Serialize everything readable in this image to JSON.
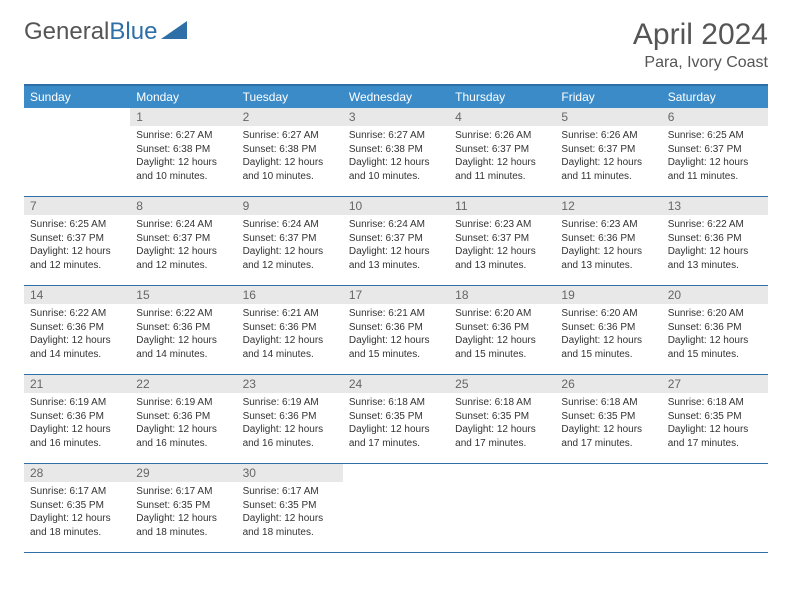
{
  "logo": {
    "part1": "General",
    "part2": "Blue"
  },
  "title": "April 2024",
  "subtitle": "Para, Ivory Coast",
  "header_color": "#3b8bc8",
  "border_color": "#2f6fa7",
  "daynum_bg": "#e8e8e8",
  "weekdays": [
    "Sunday",
    "Monday",
    "Tuesday",
    "Wednesday",
    "Thursday",
    "Friday",
    "Saturday"
  ],
  "weeks": [
    [
      {
        "n": "",
        "sr": "",
        "ss": "",
        "dl": ""
      },
      {
        "n": "1",
        "sr": "6:27 AM",
        "ss": "6:38 PM",
        "dl": "12 hours and 10 minutes."
      },
      {
        "n": "2",
        "sr": "6:27 AM",
        "ss": "6:38 PM",
        "dl": "12 hours and 10 minutes."
      },
      {
        "n": "3",
        "sr": "6:27 AM",
        "ss": "6:38 PM",
        "dl": "12 hours and 10 minutes."
      },
      {
        "n": "4",
        "sr": "6:26 AM",
        "ss": "6:37 PM",
        "dl": "12 hours and 11 minutes."
      },
      {
        "n": "5",
        "sr": "6:26 AM",
        "ss": "6:37 PM",
        "dl": "12 hours and 11 minutes."
      },
      {
        "n": "6",
        "sr": "6:25 AM",
        "ss": "6:37 PM",
        "dl": "12 hours and 11 minutes."
      }
    ],
    [
      {
        "n": "7",
        "sr": "6:25 AM",
        "ss": "6:37 PM",
        "dl": "12 hours and 12 minutes."
      },
      {
        "n": "8",
        "sr": "6:24 AM",
        "ss": "6:37 PM",
        "dl": "12 hours and 12 minutes."
      },
      {
        "n": "9",
        "sr": "6:24 AM",
        "ss": "6:37 PM",
        "dl": "12 hours and 12 minutes."
      },
      {
        "n": "10",
        "sr": "6:24 AM",
        "ss": "6:37 PM",
        "dl": "12 hours and 13 minutes."
      },
      {
        "n": "11",
        "sr": "6:23 AM",
        "ss": "6:37 PM",
        "dl": "12 hours and 13 minutes."
      },
      {
        "n": "12",
        "sr": "6:23 AM",
        "ss": "6:36 PM",
        "dl": "12 hours and 13 minutes."
      },
      {
        "n": "13",
        "sr": "6:22 AM",
        "ss": "6:36 PM",
        "dl": "12 hours and 13 minutes."
      }
    ],
    [
      {
        "n": "14",
        "sr": "6:22 AM",
        "ss": "6:36 PM",
        "dl": "12 hours and 14 minutes."
      },
      {
        "n": "15",
        "sr": "6:22 AM",
        "ss": "6:36 PM",
        "dl": "12 hours and 14 minutes."
      },
      {
        "n": "16",
        "sr": "6:21 AM",
        "ss": "6:36 PM",
        "dl": "12 hours and 14 minutes."
      },
      {
        "n": "17",
        "sr": "6:21 AM",
        "ss": "6:36 PM",
        "dl": "12 hours and 15 minutes."
      },
      {
        "n": "18",
        "sr": "6:20 AM",
        "ss": "6:36 PM",
        "dl": "12 hours and 15 minutes."
      },
      {
        "n": "19",
        "sr": "6:20 AM",
        "ss": "6:36 PM",
        "dl": "12 hours and 15 minutes."
      },
      {
        "n": "20",
        "sr": "6:20 AM",
        "ss": "6:36 PM",
        "dl": "12 hours and 15 minutes."
      }
    ],
    [
      {
        "n": "21",
        "sr": "6:19 AM",
        "ss": "6:36 PM",
        "dl": "12 hours and 16 minutes."
      },
      {
        "n": "22",
        "sr": "6:19 AM",
        "ss": "6:36 PM",
        "dl": "12 hours and 16 minutes."
      },
      {
        "n": "23",
        "sr": "6:19 AM",
        "ss": "6:36 PM",
        "dl": "12 hours and 16 minutes."
      },
      {
        "n": "24",
        "sr": "6:18 AM",
        "ss": "6:35 PM",
        "dl": "12 hours and 17 minutes."
      },
      {
        "n": "25",
        "sr": "6:18 AM",
        "ss": "6:35 PM",
        "dl": "12 hours and 17 minutes."
      },
      {
        "n": "26",
        "sr": "6:18 AM",
        "ss": "6:35 PM",
        "dl": "12 hours and 17 minutes."
      },
      {
        "n": "27",
        "sr": "6:18 AM",
        "ss": "6:35 PM",
        "dl": "12 hours and 17 minutes."
      }
    ],
    [
      {
        "n": "28",
        "sr": "6:17 AM",
        "ss": "6:35 PM",
        "dl": "12 hours and 18 minutes."
      },
      {
        "n": "29",
        "sr": "6:17 AM",
        "ss": "6:35 PM",
        "dl": "12 hours and 18 minutes."
      },
      {
        "n": "30",
        "sr": "6:17 AM",
        "ss": "6:35 PM",
        "dl": "12 hours and 18 minutes."
      },
      {
        "n": "",
        "sr": "",
        "ss": "",
        "dl": ""
      },
      {
        "n": "",
        "sr": "",
        "ss": "",
        "dl": ""
      },
      {
        "n": "",
        "sr": "",
        "ss": "",
        "dl": ""
      },
      {
        "n": "",
        "sr": "",
        "ss": "",
        "dl": ""
      }
    ]
  ]
}
